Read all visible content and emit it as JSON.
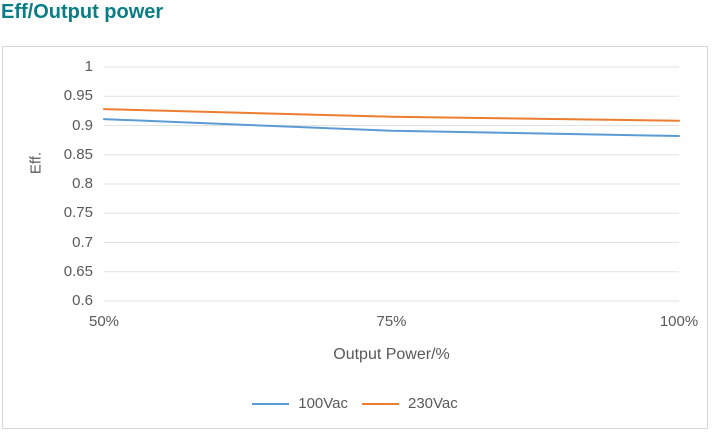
{
  "page": {
    "title": "Eff/Output power"
  },
  "colors": {
    "title": "#0A7E87",
    "axis_text": "#595959",
    "gridline": "#E2E2E2",
    "frame_border": "#D8D8D8",
    "series_100vac": "#5B9BD5",
    "series_230vac": "#ED7D31"
  },
  "chart_data": {
    "type": "line",
    "title": "Eff/Output power",
    "xlabel": "Output Power/%",
    "ylabel": "Eff.",
    "categories": [
      "50%",
      "75%",
      "100%"
    ],
    "series": [
      {
        "name": "100Vac",
        "color": "#5B9BD5",
        "values": [
          0.911,
          0.891,
          0.882
        ]
      },
      {
        "name": "230Vac",
        "color": "#ED7D31",
        "values": [
          0.928,
          0.915,
          0.908
        ]
      }
    ],
    "ylim": [
      0.6,
      1.0
    ],
    "y_ticks": [
      "1",
      "0.95",
      "0.9",
      "0.85",
      "0.8",
      "0.75",
      "0.7",
      "0.65",
      "0.6"
    ],
    "y_tick_values": [
      1,
      0.95,
      0.9,
      0.85,
      0.8,
      0.75,
      0.7,
      0.65,
      0.6
    ],
    "grid": "horizontal-only",
    "legend_position": "bottom-center"
  }
}
